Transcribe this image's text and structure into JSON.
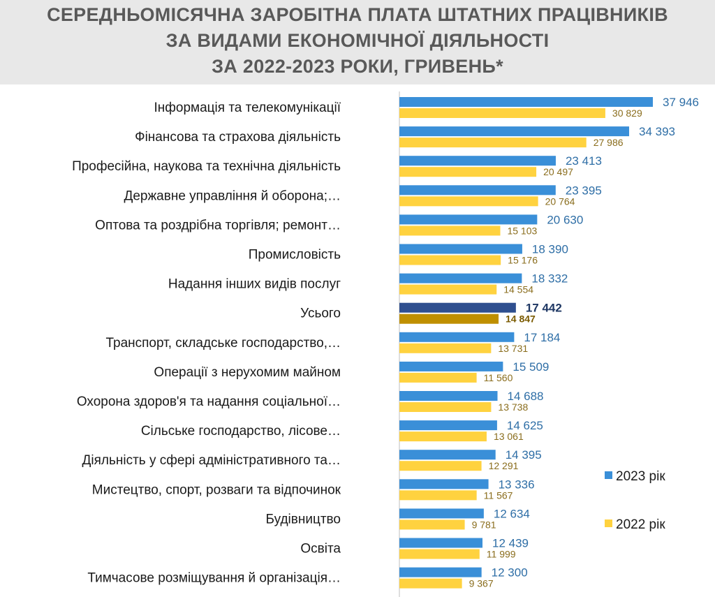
{
  "title_lines": [
    "СЕРЕДНЬОМІСЯЧНА ЗАРОБІТНА ПЛАТА ШТАТНИХ ПРАЦІВНИКІВ",
    "ЗА ВИДАМИ ЕКОНОМІЧНОЇ ДІЯЛЬНОСТІ",
    "ЗА 2022-2023 РОКИ, ГРИВЕНЬ*"
  ],
  "colors": {
    "header_bg": "#e8e8e8",
    "title_text": "#595959",
    "series_2023": "#3a8fd8",
    "series_2022": "#ffd23f",
    "highlight_2023": "#2f4f8f",
    "highlight_2022": "#bf8f00",
    "axis": "#bfbfbf"
  },
  "chart_data": {
    "type": "bar",
    "orientation": "horizontal",
    "title": "СЕРЕДНЬОМІСЯЧНА ЗАРОБІТНА ПЛАТА ШТАТНИХ ПРАЦІВНИКІВ ЗА ВИДАМИ ЕКОНОМІЧНОЇ ДІЯЛЬНОСТІ ЗА 2022-2023 РОКИ, ГРИВЕНЬ*",
    "xlim": [
      0,
      40000
    ],
    "grid": false,
    "legend_position": "right",
    "highlight_category": "Усього",
    "categories": [
      "Інформація та телекомунікації",
      "Фінансова та страхова діяльність",
      "Професійна, наукова та технічна діяльність",
      "Державне управління й оборона;…",
      "Оптова та роздрібна торгівля; ремонт…",
      "Промисловість",
      "Надання інших видів послуг",
      "Усього",
      "Транспорт, складське господарство,…",
      "Операції з нерухомим майном",
      "Охорона здоров'я та надання соціальної…",
      "Сільське господарство, лісове…",
      "Діяльність у сфері адміністративного та…",
      "Мистецтво, спорт, розваги та відпочинок",
      "Будівництво",
      "Освіта",
      "Тимчасове розміщування й організація…"
    ],
    "series": [
      {
        "name": "2023 рік",
        "values": [
          37946,
          34393,
          23413,
          23395,
          20630,
          18390,
          18332,
          17442,
          17184,
          15509,
          14688,
          14625,
          14395,
          13336,
          12634,
          12439,
          12300
        ],
        "labels": [
          "37 946",
          "34 393",
          "23 413",
          "23 395",
          "20 630",
          "18 390",
          "18 332",
          "17 442",
          "17 184",
          "15 509",
          "14 688",
          "14 625",
          "14 395",
          "13 336",
          "12 634",
          "12 439",
          "12 300"
        ]
      },
      {
        "name": "2022 рік",
        "values": [
          30829,
          27986,
          20497,
          20764,
          15103,
          15176,
          14554,
          14847,
          13731,
          11560,
          13738,
          13061,
          12291,
          11567,
          9781,
          11999,
          9367
        ],
        "labels": [
          "30 829",
          "27 986",
          "20 497",
          "20 764",
          "15 103",
          "15 176",
          "14 554",
          "14 847",
          "13 731",
          "11 560",
          "13 738",
          "13 061",
          "12 291",
          "11 567",
          "9 781",
          "11 999",
          "9 367"
        ]
      }
    ]
  }
}
